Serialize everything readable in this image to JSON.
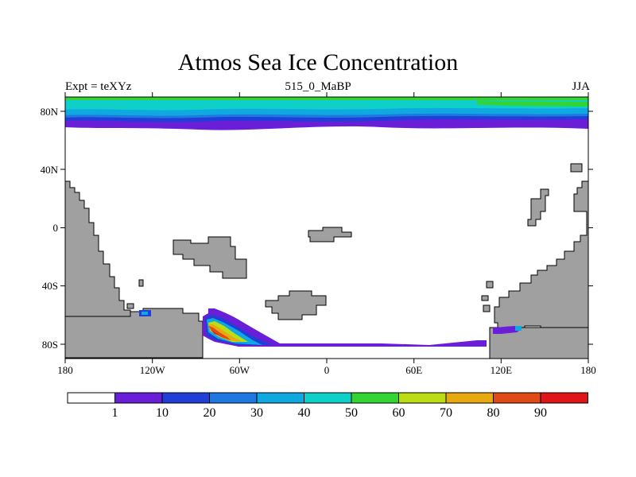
{
  "title": "Atmos Sea Ice Concentration",
  "header": {
    "left": "Expt = teXYz",
    "center": "515_0_MaBP",
    "right": "JJA"
  },
  "axes": {
    "lon_ticks": [
      "180",
      "120W",
      "60W",
      "0",
      "60E",
      "120E",
      "180"
    ],
    "lat_ticks": [
      "80N",
      "40N",
      "0",
      "40S",
      "80S"
    ]
  },
  "colorbar": {
    "labels": [
      "1",
      "10",
      "20",
      "30",
      "40",
      "50",
      "60",
      "70",
      "80",
      "90"
    ],
    "colors": [
      "#ffffff",
      "#6a1ed8",
      "#1f3fd6",
      "#1f78e0",
      "#10a8e0",
      "#0fd0c8",
      "#33d433",
      "#bcdc14",
      "#e8a810",
      "#e04a14",
      "#e01616"
    ]
  },
  "colors": {
    "land": "#a0a0a0",
    "ocean": "#ffffff"
  }
}
